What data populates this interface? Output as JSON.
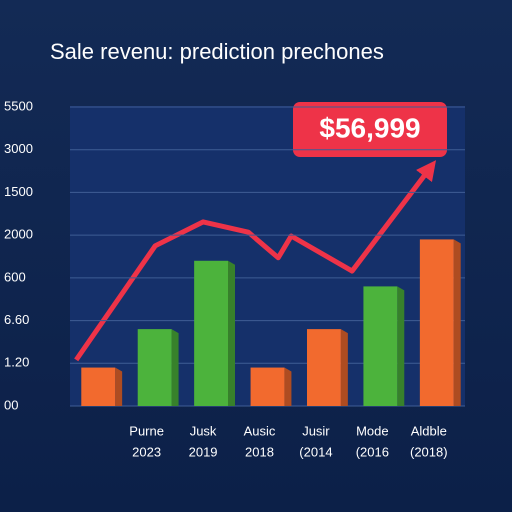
{
  "chart_data": {
    "type": "bar",
    "title": "Sale revenu: prediction prechones",
    "categories": [
      null,
      "Purne",
      "Jusk",
      "Ausic",
      "Jusir",
      "Mode",
      "Aldble"
    ],
    "category_years": [
      null,
      "2023",
      "2019",
      "2018",
      "(2014",
      "(2016",
      "(2018)"
    ],
    "values": [
      0.9,
      1.8,
      3.4,
      0.9,
      1.8,
      2.8,
      3.9
    ],
    "colors": [
      "#f26a2e",
      "#4cb33c",
      "#4cb33c",
      "#f26a2e",
      "#f26a2e",
      "#4cb33c",
      "#f26a2e"
    ],
    "ylim": [
      0,
      7
    ],
    "yticks": [
      {
        "value": 0,
        "label": "00"
      },
      {
        "value": 1,
        "label": "1.20"
      },
      {
        "value": 2,
        "label": "6.60"
      },
      {
        "value": 3,
        "label": "600"
      },
      {
        "value": 4,
        "label": "2000"
      },
      {
        "value": 5,
        "label": "1500"
      },
      {
        "value": 6,
        "label": "3000"
      },
      {
        "value": 7,
        "label": "5500"
      }
    ],
    "grid": true,
    "line": {
      "color": "#ee3348",
      "x": [
        -0.39,
        1.01,
        1.86,
        2.66,
        3.19,
        3.42,
        4.5,
        5.88
      ],
      "values": [
        1.08,
        3.75,
        4.31,
        4.07,
        3.47,
        3.98,
        3.16,
        5.57
      ]
    },
    "annotation": "$56,999"
  }
}
